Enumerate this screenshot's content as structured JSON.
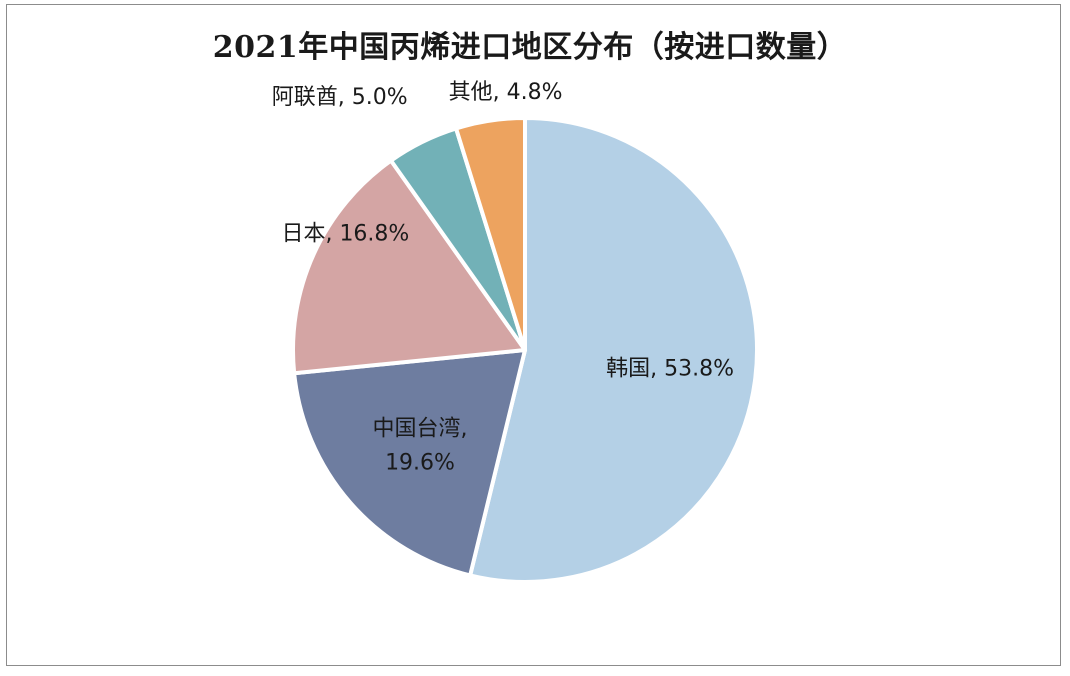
{
  "chart_data": {
    "type": "pie",
    "title": "2021年中国丙烯进口地区分布（按进口数量）",
    "slices": [
      {
        "label": "韩国",
        "value": 53.8,
        "display": "53.8%",
        "color": "#b4d0e6"
      },
      {
        "label": "中国台湾",
        "value": 19.6,
        "display": "19.6%",
        "color": "#6e7da0"
      },
      {
        "label": "日本",
        "value": 16.8,
        "display": "16.8%",
        "color": "#d4a5a4"
      },
      {
        "label": "阿联酋",
        "value": 5.0,
        "display": "5.0%",
        "color": "#72b1b7"
      },
      {
        "label": "其他",
        "value": 4.8,
        "display": "4.8%",
        "color": "#eda35f"
      }
    ],
    "start": "12 o'clock",
    "direction": "clockwise",
    "data_labels": "category, percent"
  }
}
